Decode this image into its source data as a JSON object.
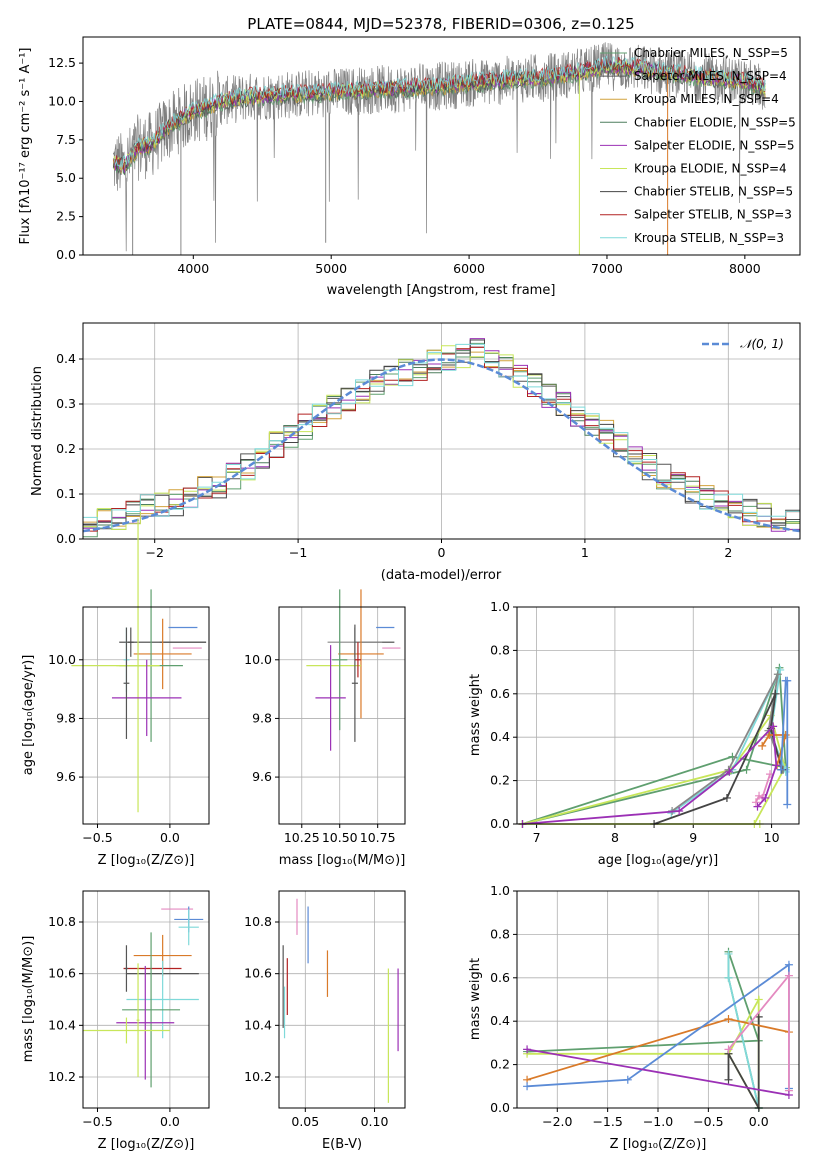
{
  "figure": {
    "title": "PLATE=0844, MJD=52378, FIBERID=0306, z=0.125"
  },
  "panels": {
    "spectrum": {
      "xlabel": "wavelength [Angstrom, rest frame]",
      "ylabel": "Flux [fλ10⁻¹⁷ erg cm⁻² s⁻¹ A⁻¹]",
      "xticks": [
        "4000",
        "5000",
        "6000",
        "7000",
        "8000"
      ],
      "yticks": [
        "0.0",
        "2.5",
        "5.0",
        "7.5",
        "10.0",
        "12.5"
      ]
    },
    "residuals": {
      "xlabel": "(data-model)/error",
      "ylabel": "Normed distribution",
      "xticks": [
        "−2",
        "−1",
        "0",
        "1",
        "2"
      ],
      "yticks": [
        "0.0",
        "0.1",
        "0.2",
        "0.3",
        "0.4"
      ],
      "legend": "𝒩(0, 1)"
    },
    "age_z": {
      "xlabel": "Z [log₁₀(Z/Z⊙)]",
      "ylabel": "age  [log₁₀(age/yr)]",
      "xticks": [
        "−0.5",
        "0.0"
      ],
      "yticks": [
        "9.6",
        "9.8",
        "10.0"
      ]
    },
    "age_mass": {
      "xlabel": "mass [log₁₀(M/M⊙)]",
      "xticks": [
        "10.25",
        "10.50",
        "10.75"
      ],
      "yticks": [
        "9.6",
        "9.8",
        "10.0"
      ]
    },
    "mw_age": {
      "xlabel": "age  [log₁₀(age/yr)]",
      "ylabel": "mass weight",
      "xticks": [
        "7",
        "8",
        "9",
        "10"
      ],
      "yticks": [
        "0.0",
        "0.2",
        "0.4",
        "0.6",
        "0.8",
        "1.0"
      ]
    },
    "mass_z": {
      "xlabel": "Z [log₁₀(Z/Z⊙)]",
      "ylabel": "mass [log₁₀(M/M⊙)]",
      "xticks": [
        "−0.5",
        "0.0"
      ],
      "yticks": [
        "10.2",
        "10.4",
        "10.6",
        "10.8"
      ]
    },
    "mass_ebv": {
      "xlabel": "E(B-V)",
      "xticks": [
        "0.05",
        "0.10"
      ],
      "yticks": [
        "10.2",
        "10.4",
        "10.6",
        "10.8"
      ]
    },
    "mw_z": {
      "xlabel": "Z [log₁₀(Z/Z⊙)]",
      "ylabel": "mass weight",
      "xticks": [
        "−2.0",
        "−1.5",
        "−1.0",
        "−0.5",
        "0.0"
      ],
      "yticks": [
        "0.0",
        "0.2",
        "0.4",
        "0.6",
        "0.8",
        "1.0"
      ]
    }
  },
  "chart_data": [
    {
      "type": "line",
      "panel": "spectrum",
      "xlim": [
        3200,
        8400
      ],
      "ylim": [
        0,
        14.2
      ],
      "legend_placement": "top-right",
      "series": [
        {
          "name": "Chabrier MILES, N_SSP=5",
          "color": "#5f9f6f"
        },
        {
          "name": "Salpeter MILES, N_SSP=4",
          "color": "#555555"
        },
        {
          "name": "Kroupa MILES, N_SSP=4",
          "color": "#d2a23c"
        },
        {
          "name": "Chabrier ELODIE, N_SSP=5",
          "color": "#4f7f5f"
        },
        {
          "name": "Salpeter ELODIE, N_SSP=5",
          "color": "#9b30b5"
        },
        {
          "name": "Kroupa ELODIE, N_SSP=4",
          "color": "#c8e65a"
        },
        {
          "name": "Chabrier STELIB, N_SSP=5",
          "color": "#444444"
        },
        {
          "name": "Salpeter STELIB, N_SSP=3",
          "color": "#b22222"
        },
        {
          "name": "Kroupa STELIB, N_SSP=3",
          "color": "#7fd9d9"
        }
      ],
      "data_color": "#808080",
      "model_envelope": {
        "x": [
          3400,
          3500,
          3600,
          3700,
          3800,
          3900,
          4000,
          4100,
          4200,
          4400,
          4600,
          4800,
          5000,
          5200,
          5400,
          5600,
          5800,
          6000,
          6200,
          6400,
          6600,
          6800,
          7000,
          7200,
          7400,
          7600,
          7800,
          8000,
          8150
        ],
        "y": [
          6.0,
          5.8,
          7.0,
          7.2,
          8.2,
          8.8,
          9.4,
          9.6,
          10.0,
          10.3,
          10.4,
          10.5,
          10.6,
          10.7,
          10.8,
          10.9,
          11.0,
          11.2,
          11.3,
          11.5,
          11.6,
          11.9,
          12.3,
          12.2,
          11.9,
          11.7,
          11.5,
          11.3,
          10.8
        ]
      },
      "grid": false
    },
    {
      "type": "bar",
      "panel": "residuals",
      "xlim": [
        -2.5,
        2.5
      ],
      "ylim": [
        0,
        0.48
      ],
      "bin_centers": [
        -2.45,
        -2.35,
        -2.25,
        -2.15,
        -2.05,
        -1.95,
        -1.85,
        -1.75,
        -1.65,
        -1.55,
        -1.45,
        -1.35,
        -1.25,
        -1.15,
        -1.05,
        -0.95,
        -0.85,
        -0.75,
        -0.65,
        -0.55,
        -0.45,
        -0.35,
        -0.25,
        -0.15,
        -0.05,
        0.05,
        0.15,
        0.25,
        0.35,
        0.45,
        0.55,
        0.65,
        0.75,
        0.85,
        0.95,
        1.05,
        1.15,
        1.25,
        1.35,
        1.45,
        1.55,
        1.65,
        1.75,
        1.85,
        1.95,
        2.05,
        2.15,
        2.25,
        2.35,
        2.45
      ],
      "envelope_values": [
        0.03,
        0.05,
        0.05,
        0.06,
        0.07,
        0.08,
        0.08,
        0.09,
        0.11,
        0.12,
        0.14,
        0.16,
        0.18,
        0.21,
        0.23,
        0.25,
        0.27,
        0.29,
        0.31,
        0.33,
        0.35,
        0.36,
        0.37,
        0.38,
        0.39,
        0.4,
        0.41,
        0.42,
        0.4,
        0.38,
        0.36,
        0.34,
        0.32,
        0.3,
        0.28,
        0.26,
        0.24,
        0.21,
        0.19,
        0.16,
        0.14,
        0.12,
        0.11,
        0.09,
        0.08,
        0.07,
        0.06,
        0.05,
        0.04,
        0.04
      ],
      "series_colors": [
        "#5f9f6f",
        "#555555",
        "#d2a23c",
        "#4f7f5f",
        "#9b30b5",
        "#c8e65a",
        "#444444",
        "#b22222",
        "#7fd9d9"
      ],
      "reference_curve": {
        "name": "𝒩(0, 1)",
        "mean": 0,
        "sigma": 1,
        "color": "#5b8bd6",
        "style": "dashed"
      },
      "legend_placement": "top-right",
      "grid": true
    },
    {
      "type": "scatter",
      "panel": "age_z",
      "xlim": [
        -0.6,
        0.27
      ],
      "ylim": [
        9.44,
        10.18
      ],
      "points": [
        {
          "x": 0.09,
          "y": 10.11,
          "xerr": 0.1,
          "yerr": 0.0,
          "color": "#5b8bd6"
        },
        {
          "x": 0.09,
          "y": 10.06,
          "xerr": 0.16,
          "yerr": 0.0,
          "color": "#888888"
        },
        {
          "x": -0.27,
          "y": 10.06,
          "xerr": 0.02,
          "yerr": 0.05,
          "color": "#555555"
        },
        {
          "x": -0.05,
          "y": 10.06,
          "xerr": 0.3,
          "yerr": 0.0,
          "color": "#444444"
        },
        {
          "x": -0.05,
          "y": 10.02,
          "xerr": 0.2,
          "yerr": 0.12,
          "color": "#d97a29"
        },
        {
          "x": 0.12,
          "y": 10.04,
          "xerr": 0.1,
          "yerr": 0.0,
          "color": "#e48ac0"
        },
        {
          "x": -0.3,
          "y": 10.0,
          "xerr": 0.02,
          "yerr": 0.11,
          "color": "#7fd9d9"
        },
        {
          "x": -0.13,
          "y": 9.98,
          "xerr": 0.22,
          "yerr": 0.26,
          "color": "#5f9f6f"
        },
        {
          "x": -0.38,
          "y": 9.98,
          "xerr": 0.3,
          "yerr": 0.0,
          "color": "#c8e65a"
        },
        {
          "x": -0.22,
          "y": 9.98,
          "xerr": 0.15,
          "yerr": 0.5,
          "color": "#c8e65a"
        },
        {
          "x": -0.16,
          "y": 9.87,
          "xerr": 0.24,
          "yerr": 0.13,
          "color": "#9b30b5"
        },
        {
          "x": -0.3,
          "y": 9.92,
          "xerr": 0.02,
          "yerr": 0.19,
          "color": "#555555"
        }
      ],
      "grid": true
    },
    {
      "type": "scatter",
      "panel": "age_mass",
      "xlim": [
        10.1,
        10.93
      ],
      "ylim": [
        9.44,
        10.18
      ],
      "points": [
        {
          "x": 10.8,
          "y": 10.11,
          "xerr": 0.06,
          "yerr": 0.0,
          "color": "#5b8bd6"
        },
        {
          "x": 10.73,
          "y": 10.06,
          "xerr": 0.13,
          "yerr": 0.0,
          "color": "#444444"
        },
        {
          "x": 10.6,
          "y": 10.06,
          "xerr": 0.18,
          "yerr": 0.05,
          "color": "#888888"
        },
        {
          "x": 10.64,
          "y": 10.02,
          "xerr": 0.15,
          "yerr": 0.22,
          "color": "#d97a29"
        },
        {
          "x": 10.84,
          "y": 10.04,
          "xerr": 0.06,
          "yerr": 0.0,
          "color": "#e48ac0"
        },
        {
          "x": 10.46,
          "y": 9.98,
          "xerr": 0.18,
          "yerr": 0.0,
          "color": "#c8e65a"
        },
        {
          "x": 10.5,
          "y": 10.0,
          "xerr": 0.05,
          "yerr": 0.24,
          "color": "#5f9f6f"
        },
        {
          "x": 10.44,
          "y": 9.87,
          "xerr": 0.1,
          "yerr": 0.18,
          "color": "#9b30b5"
        },
        {
          "x": 10.6,
          "y": 9.92,
          "xerr": 0.02,
          "yerr": 0.2,
          "color": "#555555"
        },
        {
          "x": 10.62,
          "y": 10.0,
          "xerr": 0.02,
          "yerr": 0.06,
          "color": "#b22222"
        }
      ],
      "grid": true
    },
    {
      "type": "line",
      "panel": "mw_age",
      "xlim": [
        6.75,
        10.35
      ],
      "ylim": [
        0,
        1.0
      ],
      "series": [
        {
          "x": [
            6.82,
            9.68,
            10.1,
            10.18,
            9.5,
            6.82
          ],
          "y": [
            0.0,
            0.25,
            0.72,
            0.26,
            0.31,
            0.0
          ],
          "color": "#5f9f6f"
        },
        {
          "x": [
            6.82,
            9.48,
            9.99,
            10.17,
            9.78,
            9.85,
            6.82
          ],
          "y": [
            0.0,
            0.25,
            0.5,
            0.26,
            0.0,
            0.0,
            0.0
          ],
          "color": "#c8e65a"
        },
        {
          "x": [
            8.72,
            9.5,
            10.11,
            9.99,
            10.18,
            10.18
          ],
          "y": [
            0.05,
            0.25,
            0.71,
            0.42,
            0.24,
            0.25
          ],
          "color": "#7fd9d9"
        },
        {
          "x": [
            8.73,
            9.45,
            10.08,
            9.96,
            10.15
          ],
          "y": [
            0.06,
            0.25,
            0.69,
            0.43,
            0.25
          ],
          "color": "#888888"
        },
        {
          "x": [
            8.5,
            9.43,
            10.05,
            9.99,
            10.13
          ],
          "y": [
            0.0,
            0.12,
            0.6,
            0.44,
            0.25
          ],
          "color": "#444444"
        },
        {
          "x": [
            9.88,
            9.97,
            10.18,
            10.07
          ],
          "y": [
            0.36,
            0.41,
            0.41,
            0.27
          ],
          "color": "#d97a29"
        },
        {
          "x": [
            9.8,
            9.84,
            9.88,
            9.98
          ],
          "y": [
            0.1,
            0.13,
            0.12,
            0.23
          ],
          "color": "#e48ac0"
        },
        {
          "x": [
            10.12,
            10.18,
            10.2,
            10.2
          ],
          "y": [
            0.25,
            0.66,
            0.66,
            0.09
          ],
          "color": "#5b8bd6"
        },
        {
          "x": [
            6.82,
            8.82,
            9.46,
            10.02,
            10.06,
            9.92,
            9.82
          ],
          "y": [
            0.0,
            0.06,
            0.24,
            0.45,
            0.27,
            0.12,
            0.08
          ],
          "color": "#9b30b5"
        }
      ],
      "grid": true
    },
    {
      "type": "scatter",
      "panel": "mass_z",
      "xlim": [
        -0.6,
        0.27
      ],
      "ylim": [
        10.08,
        10.92
      ],
      "points": [
        {
          "x": 0.05,
          "y": 10.85,
          "xerr": 0.11,
          "yerr": 0.0,
          "color": "#e48ac0"
        },
        {
          "x": 0.13,
          "y": 10.81,
          "xerr": 0.1,
          "yerr": 0.05,
          "color": "#5b8bd6"
        },
        {
          "x": 0.13,
          "y": 10.78,
          "xerr": 0.07,
          "yerr": 0.07,
          "color": "#7fd9d9"
        },
        {
          "x": -0.05,
          "y": 10.67,
          "xerr": 0.2,
          "yerr": 0.08,
          "color": "#d97a29"
        },
        {
          "x": -0.12,
          "y": 10.62,
          "xerr": 0.2,
          "yerr": 0.0,
          "color": "#b22222"
        },
        {
          "x": -0.05,
          "y": 10.6,
          "xerr": 0.25,
          "yerr": 0.0,
          "color": "#444444"
        },
        {
          "x": -0.3,
          "y": 10.62,
          "xerr": 0.01,
          "yerr": 0.09,
          "color": "#555555"
        },
        {
          "x": -0.05,
          "y": 10.5,
          "xerr": 0.25,
          "yerr": 0.15,
          "color": "#7fd9d9"
        },
        {
          "x": -0.13,
          "y": 10.46,
          "xerr": 0.2,
          "yerr": 0.3,
          "color": "#5f9f6f"
        },
        {
          "x": -0.17,
          "y": 10.41,
          "xerr": 0.2,
          "yerr": 0.22,
          "color": "#9b30b5"
        },
        {
          "x": -0.3,
          "y": 10.38,
          "xerr": 0.3,
          "yerr": 0.05,
          "color": "#c8e65a"
        },
        {
          "x": -0.22,
          "y": 10.42,
          "xerr": 0.01,
          "yerr": 0.22,
          "color": "#c8e65a"
        }
      ],
      "grid": true
    },
    {
      "type": "scatter",
      "panel": "mass_ebv",
      "xlim": [
        0.031,
        0.122
      ],
      "ylim": [
        10.08,
        10.92
      ],
      "points": [
        {
          "x": 0.044,
          "y": 10.82,
          "yerr": 0.07,
          "color": "#e48ac0"
        },
        {
          "x": 0.052,
          "y": 10.75,
          "yerr": 0.11,
          "color": "#5b8bd6"
        },
        {
          "x": 0.066,
          "y": 10.6,
          "yerr": 0.09,
          "color": "#d97a29"
        },
        {
          "x": 0.034,
          "y": 10.55,
          "yerr": 0.16,
          "color": "#555555"
        },
        {
          "x": 0.035,
          "y": 10.45,
          "yerr": 0.1,
          "color": "#7fd9d9"
        },
        {
          "x": 0.037,
          "y": 10.55,
          "yerr": 0.11,
          "color": "#b22222"
        },
        {
          "x": 0.11,
          "y": 10.36,
          "yerr": 0.26,
          "color": "#c8e65a"
        },
        {
          "x": 0.117,
          "y": 10.46,
          "yerr": 0.16,
          "color": "#9b30b5"
        }
      ],
      "grid": true
    },
    {
      "type": "line",
      "panel": "mw_z",
      "xlim": [
        -2.4,
        0.4
      ],
      "ylim": [
        0,
        1.0
      ],
      "series": [
        {
          "x": [
            -2.3,
            0.0,
            -0.3,
            -0.3,
            0.0
          ],
          "y": [
            0.26,
            0.31,
            0.72,
            0.6,
            0.0
          ],
          "color": "#5f9f6f"
        },
        {
          "x": [
            -2.3,
            -0.3,
            0.0,
            0.0,
            -0.3
          ],
          "y": [
            0.25,
            0.25,
            0.5,
            0.0,
            0.25
          ],
          "color": "#c8e65a"
        },
        {
          "x": [
            -0.3,
            -0.3,
            0.0,
            0.0
          ],
          "y": [
            0.71,
            0.6,
            0.0,
            0.0
          ],
          "color": "#7fd9d9"
        },
        {
          "x": [
            -0.3,
            -0.3,
            0.0,
            0.0
          ],
          "y": [
            0.13,
            0.25,
            0.0,
            0.42
          ],
          "color": "#444444"
        },
        {
          "x": [
            -2.3,
            -0.3,
            0.3
          ],
          "y": [
            0.13,
            0.41,
            0.35
          ],
          "color": "#d97a29"
        },
        {
          "x": [
            -2.3,
            -1.3,
            0.3,
            0.3
          ],
          "y": [
            0.1,
            0.13,
            0.66,
            0.09
          ],
          "color": "#5b8bd6"
        },
        {
          "x": [
            -0.3,
            0.3,
            0.3
          ],
          "y": [
            0.27,
            0.61,
            0.08
          ],
          "color": "#e48ac0"
        },
        {
          "x": [
            -2.3,
            0.3
          ],
          "y": [
            0.27,
            0.06
          ],
          "color": "#9b30b5"
        }
      ],
      "grid": true
    }
  ]
}
